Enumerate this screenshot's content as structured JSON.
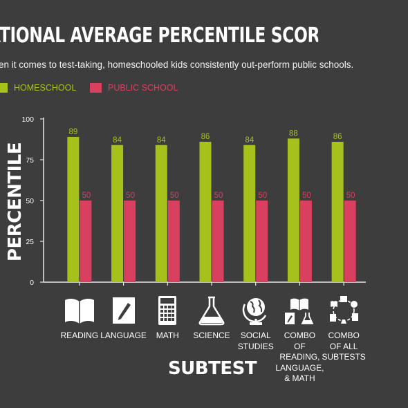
{
  "title": "ATIONAL AVERAGE PERCENTILE SCORES",
  "subtitle": "en it comes to test-taking, homeschooled kids consistently out-perform public schools.",
  "legend": [
    {
      "label": "HOMESCHOOL",
      "color": "#a7c11c"
    },
    {
      "label": "PUBLIC SCHOOL",
      "color": "#d9405f"
    }
  ],
  "icons": [
    "book-icon",
    "notepad-pencil-icon",
    "calculator-icon",
    "flask-icon",
    "globe-icon",
    "book-notepad-flask-icon",
    "all-subtests-cycle-icon"
  ],
  "chart_data": {
    "type": "bar",
    "title": "ATIONAL AVERAGE PERCENTILE SCORES",
    "xlabel": "SUBTEST",
    "ylabel": "PERCENTILE",
    "ylim": [
      0,
      100
    ],
    "yticks": [
      0,
      25,
      50,
      75,
      100
    ],
    "grid": false,
    "legend_position": "top-left",
    "categories": [
      "READING",
      "LANGUAGE",
      "MATH",
      "SCIENCE",
      "SOCIAL\nSTUDIES",
      "COMBO\nOF READING,\nLANGUAGE,\n& MATH",
      "COMBO\nOF ALL\nSUBTESTS"
    ],
    "series": [
      {
        "name": "HOMESCHOOL",
        "color": "#a7c11c",
        "values": [
          89,
          84,
          84,
          86,
          84,
          88,
          86
        ]
      },
      {
        "name": "PUBLIC SCHOOL",
        "color": "#d9405f",
        "values": [
          50,
          50,
          50,
          50,
          50,
          50,
          50
        ]
      }
    ]
  }
}
